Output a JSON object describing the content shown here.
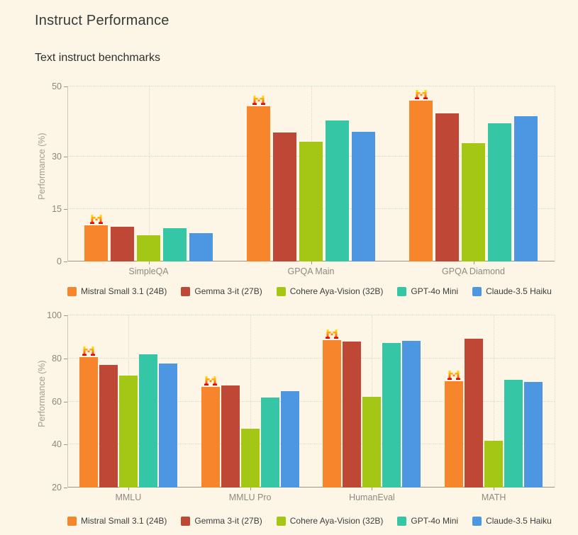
{
  "header": {
    "title": "Instruct Performance",
    "subtitle": "Text instruct benchmarks"
  },
  "theme": {
    "background": "#FDF6E7",
    "grid_color": "#DDD6C4",
    "axis_color": "#9A958A",
    "tick_text_color": "#8A877E",
    "legend_text_color": "#3D3D3D"
  },
  "icons": {
    "winner_marker": "mistral-m-logo-crown-icon"
  },
  "chart_data": [
    {
      "type": "bar",
      "title": "",
      "xlabel": "",
      "ylabel": "Performance (%)",
      "ylim": [
        0,
        50
      ],
      "yticks": [
        0,
        15,
        30,
        50
      ],
      "grid": true,
      "legend_position": "bottom",
      "crown_on_series": 0,
      "categories": [
        "SimpleQA",
        "GPQA Main",
        "GPQA Diamond"
      ],
      "series": [
        {
          "name": "Mistral Small 3.1 (24B)",
          "color": "#F7852C",
          "values": [
            10.4,
            44.4,
            46.0
          ]
        },
        {
          "name": "Gemma 3-it (27B)",
          "color": "#BE4735",
          "values": [
            10.0,
            36.8,
            42.4
          ]
        },
        {
          "name": "Cohere Aya-Vision (32B)",
          "color": "#A4C614",
          "values": [
            7.5,
            34.3,
            33.8
          ]
        },
        {
          "name": "GPT-4o Mini",
          "color": "#34C6A5",
          "values": [
            9.5,
            40.2,
            39.4
          ]
        },
        {
          "name": "Claude-3.5 Haiku",
          "color": "#4C96E2",
          "values": [
            8.0,
            37.1,
            41.5
          ]
        }
      ]
    },
    {
      "type": "bar",
      "title": "",
      "xlabel": "",
      "ylabel": "Performance (%)",
      "ylim": [
        20,
        100
      ],
      "yticks": [
        20,
        40,
        60,
        80,
        100
      ],
      "grid": true,
      "legend_position": "bottom",
      "crown_on_series": 0,
      "categories": [
        "MMLU",
        "MMLU Pro",
        "HumanEval",
        "MATH"
      ],
      "series": [
        {
          "name": "Mistral Small 3.1 (24B)",
          "color": "#F7852C",
          "values": [
            80.6,
            66.8,
            88.4,
            69.3
          ]
        },
        {
          "name": "Gemma 3-it (27B)",
          "color": "#BE4735",
          "values": [
            76.9,
            67.5,
            87.8,
            89.0
          ]
        },
        {
          "name": "Cohere Aya-Vision (32B)",
          "color": "#A4C614",
          "values": [
            72.1,
            47.2,
            62.2,
            41.7
          ]
        },
        {
          "name": "GPT-4o Mini",
          "color": "#34C6A5",
          "values": [
            82.0,
            61.7,
            87.2,
            70.2
          ]
        },
        {
          "name": "Claude-3.5 Haiku",
          "color": "#4C96E2",
          "values": [
            77.6,
            64.8,
            88.1,
            69.2
          ]
        }
      ]
    }
  ]
}
